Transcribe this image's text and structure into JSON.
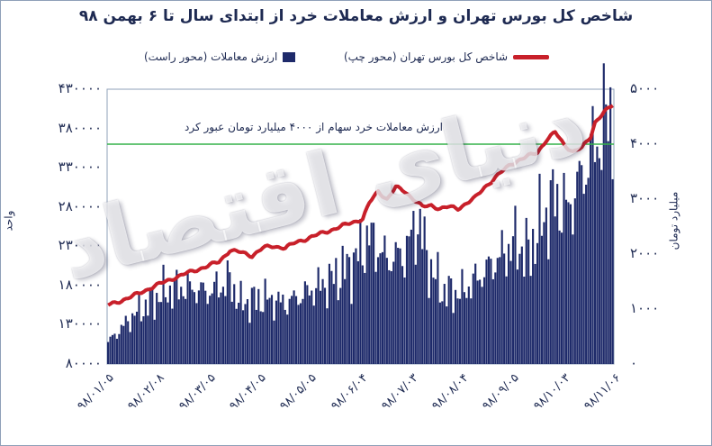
{
  "chart_data": {
    "type": "bar+line",
    "title": "شاخص کل بورس تهران و ارزش معاملات خرد از ابتدای سال تا ۶ بهمن ۹۸",
    "legend": {
      "bars": "ارزش معاملات (محور راست)",
      "line": "شاخص کل بورس تهران (محور چپ)"
    },
    "left_axis": {
      "label": "واحد",
      "range": [
        80000,
        430000
      ],
      "ticks": [
        "۴۳۰۰۰۰",
        "۳۸۰۰۰۰",
        "۳۳۰۰۰۰",
        "۲۸۰۰۰۰",
        "۲۳۰۰۰۰",
        "۱۸۰۰۰۰",
        "۱۳۰۰۰۰",
        "۸۰۰۰۰"
      ]
    },
    "right_axis": {
      "label": "میلیارد تومان",
      "range": [
        0,
        5000
      ],
      "ticks": [
        "۵۰۰۰",
        "۴۰۰۰",
        "۳۰۰۰",
        "۲۰۰۰",
        "۱۰۰۰",
        "۰"
      ]
    },
    "x_ticks": [
      "۹۸/۰۱/۰۵",
      "۹۸/۰۲/۰۸",
      "۹۸/۰۳/۰۵",
      "۹۸/۰۴/۰۵",
      "۹۸/۰۵/۰۵",
      "۹۸/۰۶/۰۴",
      "۹۸/۰۷/۰۳",
      "۹۸/۰۸/۰۴",
      "۹۸/۰۹/۰۵",
      "۹۸/۱۰/۰۳",
      "۹۸/۱۱/۰۶"
    ],
    "threshold": {
      "value": 4000,
      "axis": "right",
      "annotation": "ارزش معاملات خرد سهام از ۴۰۰۰ میلیارد تومان عبور کرد"
    },
    "line_keypoints": [
      [
        0,
        155000
      ],
      [
        10,
        165000
      ],
      [
        20,
        178000
      ],
      [
        30,
        190000
      ],
      [
        40,
        200000
      ],
      [
        50,
        210000
      ],
      [
        55,
        225000
      ],
      [
        60,
        222000
      ],
      [
        65,
        218000
      ],
      [
        70,
        228000
      ],
      [
        75,
        230000
      ],
      [
        80,
        228000
      ],
      [
        85,
        235000
      ],
      [
        90,
        240000
      ],
      [
        95,
        245000
      ],
      [
        100,
        250000
      ],
      [
        105,
        255000
      ],
      [
        110,
        260000
      ],
      [
        115,
        265000
      ],
      [
        118,
        285000
      ],
      [
        122,
        300000
      ],
      [
        126,
        290000
      ],
      [
        130,
        305000
      ],
      [
        134,
        300000
      ],
      [
        138,
        290000
      ],
      [
        142,
        280000
      ],
      [
        146,
        282000
      ],
      [
        150,
        278000
      ],
      [
        154,
        280000
      ],
      [
        158,
        278000
      ],
      [
        162,
        285000
      ],
      [
        166,
        292000
      ],
      [
        170,
        305000
      ],
      [
        174,
        315000
      ],
      [
        178,
        325000
      ],
      [
        182,
        335000
      ],
      [
        186,
        340000
      ],
      [
        190,
        345000
      ],
      [
        194,
        350000
      ],
      [
        198,
        365000
      ],
      [
        202,
        375000
      ],
      [
        206,
        360000
      ],
      [
        210,
        350000
      ],
      [
        214,
        355000
      ],
      [
        218,
        370000
      ],
      [
        220,
        388000
      ],
      [
        224,
        400000
      ],
      [
        228,
        410000
      ]
    ],
    "bar_keypoints": [
      [
        0,
        400
      ],
      [
        12,
        900
      ],
      [
        25,
        1300
      ],
      [
        35,
        1400
      ],
      [
        45,
        1300
      ],
      [
        55,
        1500
      ],
      [
        60,
        1100
      ],
      [
        70,
        1200
      ],
      [
        80,
        1100
      ],
      [
        90,
        1300
      ],
      [
        100,
        1500
      ],
      [
        110,
        1800
      ],
      [
        118,
        2300
      ],
      [
        126,
        1900
      ],
      [
        134,
        2000
      ],
      [
        140,
        2600
      ],
      [
        146,
        1700
      ],
      [
        152,
        1300
      ],
      [
        160,
        1300
      ],
      [
        168,
        1600
      ],
      [
        176,
        1900
      ],
      [
        184,
        2200
      ],
      [
        190,
        2000
      ],
      [
        196,
        2600
      ],
      [
        202,
        3000
      ],
      [
        208,
        2800
      ],
      [
        212,
        3200
      ],
      [
        216,
        3600
      ],
      [
        220,
        4000
      ],
      [
        224,
        4300
      ],
      [
        228,
        4700
      ]
    ],
    "n_points": 229
  },
  "watermark": "دنیای اقتصاد",
  "colors": {
    "bars": "#1e2a6a",
    "line": "#c8202a",
    "threshold": "#35b24a",
    "text": "#1e2a52"
  }
}
